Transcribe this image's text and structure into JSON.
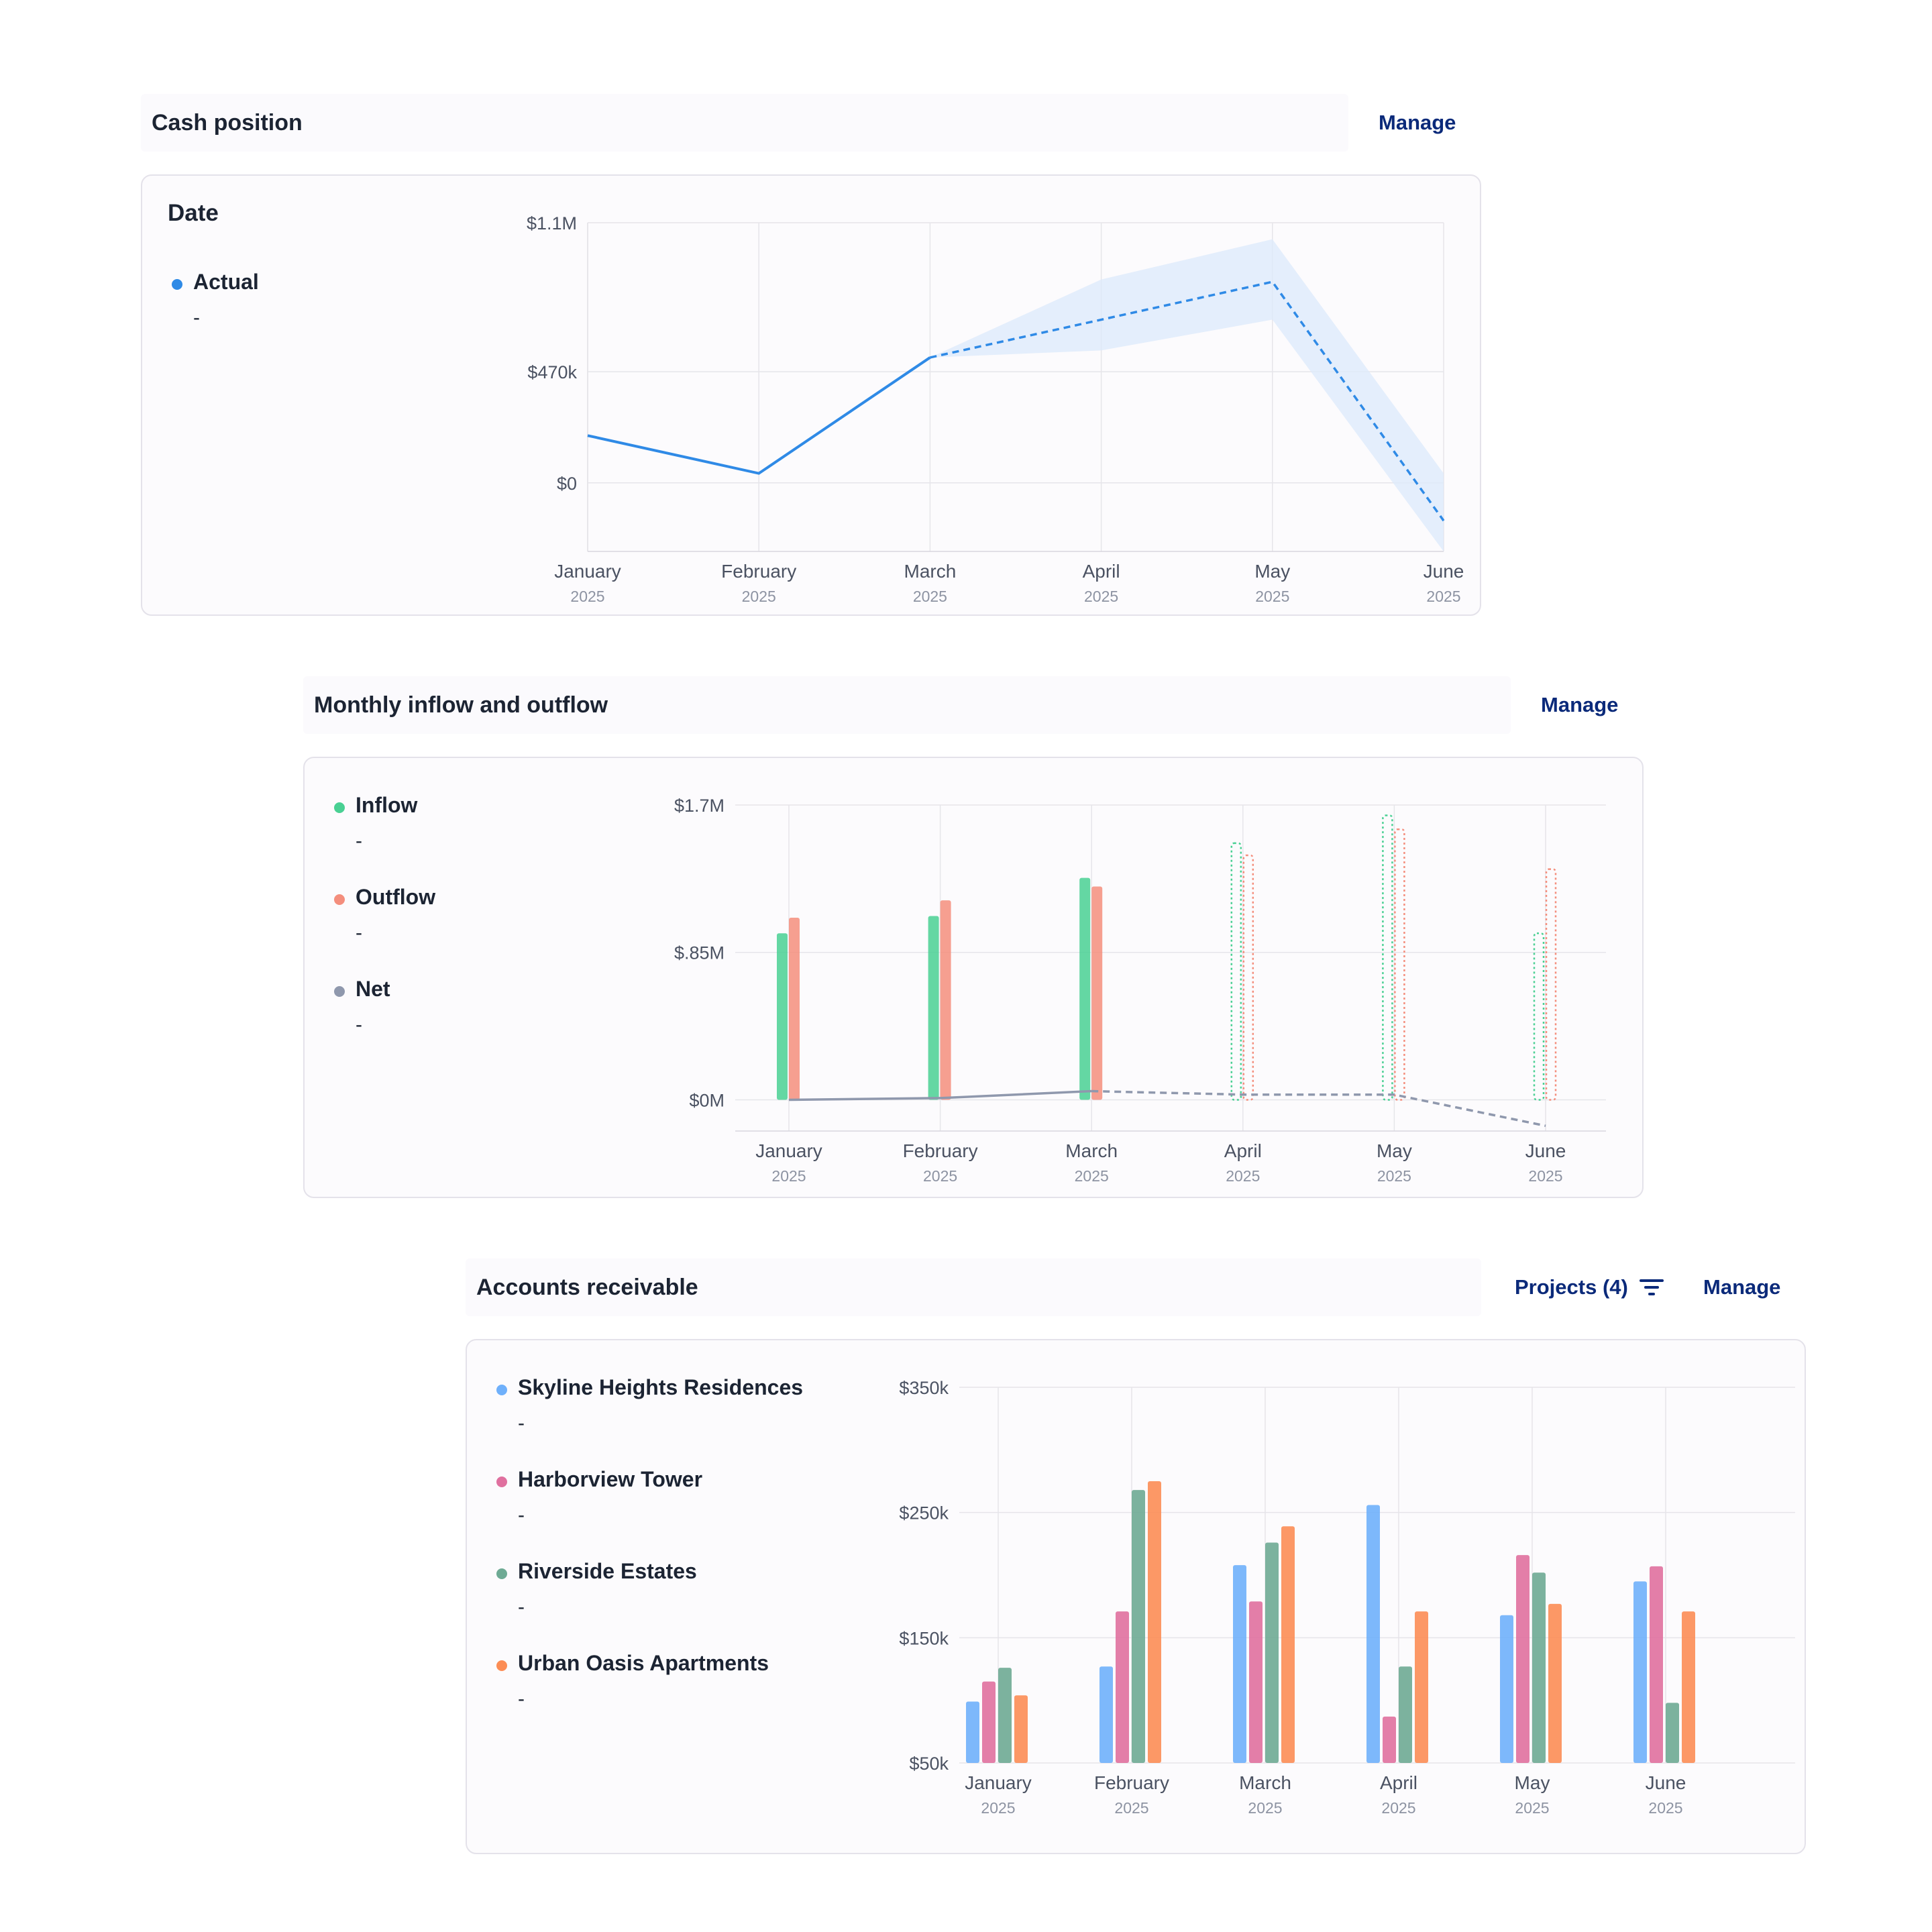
{
  "colors": {
    "actual": "#2f8ae6",
    "inflow": "#49d093",
    "outflow": "#f48e7d",
    "net": "#8f98ad",
    "skyline": "#6fb0fb",
    "harborview": "#e0709f",
    "riverside": "#6eaa94",
    "urban": "#fc8d55",
    "link": "#0b2a7a"
  },
  "cash_position": {
    "title": "Cash position",
    "manage_label": "Manage",
    "card_title": "Date",
    "legend": [
      {
        "label": "Actual",
        "value": "-",
        "color": "#2f8ae6"
      }
    ]
  },
  "monthly_flow": {
    "title": "Monthly inflow and outflow",
    "manage_label": "Manage",
    "legend": [
      {
        "label": "Inflow",
        "value": "-",
        "color": "#49d093"
      },
      {
        "label": "Outflow",
        "value": "-",
        "color": "#f48e7d"
      },
      {
        "label": "Net",
        "value": "-",
        "color": "#8f98ad"
      }
    ]
  },
  "accounts_receivable": {
    "title": "Accounts receivable",
    "projects_label": "Projects (4)",
    "filter_icon": "filter-icon",
    "manage_label": "Manage",
    "legend": [
      {
        "label": "Skyline Heights Residences",
        "value": "-",
        "color": "#6fb0fb"
      },
      {
        "label": "Harborview Tower",
        "value": "-",
        "color": "#e0709f"
      },
      {
        "label": "Riverside Estates",
        "value": "-",
        "color": "#6eaa94"
      },
      {
        "label": "Urban Oasis Apartments",
        "value": "-",
        "color": "#fc8d55"
      }
    ]
  },
  "chart_data": [
    {
      "type": "line",
      "categories": [
        "January",
        "February",
        "March",
        "April",
        "May",
        "June"
      ],
      "category_years": [
        "2025",
        "2025",
        "2025",
        "2025",
        "2025",
        "2025"
      ],
      "y_ticks": [
        "$1.1M",
        "$470k",
        "$0"
      ],
      "y_tick_values": [
        1100000,
        470000,
        0
      ],
      "ylim": [
        -290000,
        1100000
      ],
      "series": [
        {
          "name": "Actual",
          "values": [
            200000,
            40000,
            530000,
            690000,
            850000,
            -160000
          ],
          "projected_from_index": 2,
          "band_low": [
            null,
            null,
            530000,
            560000,
            690000,
            -350000
          ],
          "band_high": [
            null,
            null,
            530000,
            860000,
            1030000,
            40000
          ]
        }
      ],
      "grid": true
    },
    {
      "type": "bar",
      "categories": [
        "January",
        "February",
        "March",
        "April",
        "May",
        "June"
      ],
      "category_years": [
        "2025",
        "2025",
        "2025",
        "2025",
        "2025",
        "2025"
      ],
      "y_ticks": [
        "$1.7M",
        "$.85M",
        "$0M"
      ],
      "y_tick_values": [
        1700000,
        850000,
        0
      ],
      "ylim": [
        -180000,
        1700000
      ],
      "series": [
        {
          "name": "Inflow",
          "values": [
            960000,
            1060000,
            1280000,
            1480000,
            1640000,
            960000
          ],
          "projected_from_index": 3
        },
        {
          "name": "Outflow",
          "values": [
            1050000,
            1150000,
            1230000,
            1410000,
            1560000,
            1330000
          ],
          "projected_from_index": 3
        },
        {
          "name": "Net",
          "kind": "line",
          "values": [
            0,
            10000,
            50000,
            30000,
            30000,
            -150000
          ],
          "projected_from_index": 2
        }
      ],
      "grid": true
    },
    {
      "type": "bar",
      "categories": [
        "January",
        "February",
        "March",
        "April",
        "May",
        "June"
      ],
      "category_years": [
        "2025",
        "2025",
        "2025",
        "2025",
        "2025",
        "2025"
      ],
      "y_ticks": [
        "$350k",
        "$250k",
        "$150k",
        "$50k"
      ],
      "y_tick_values": [
        350000,
        250000,
        150000,
        50000
      ],
      "ylim": [
        50000,
        350000
      ],
      "series": [
        {
          "name": "Skyline Heights Residences",
          "values": [
            99000,
            127000,
            208000,
            256000,
            168000,
            195000
          ]
        },
        {
          "name": "Harborview Tower",
          "values": [
            115000,
            171000,
            179000,
            87000,
            216000,
            207000
          ]
        },
        {
          "name": "Riverside Estates",
          "values": [
            126000,
            268000,
            226000,
            127000,
            202000,
            98000
          ]
        },
        {
          "name": "Urban Oasis Apartments",
          "values": [
            104000,
            275000,
            239000,
            171000,
            177000,
            171000
          ]
        }
      ],
      "grid": true
    }
  ]
}
